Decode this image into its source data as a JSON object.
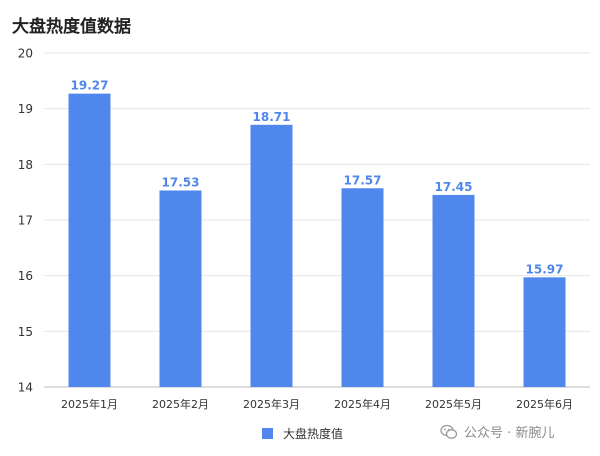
{
  "title": "大盘热度值数据",
  "watermark": "公众号 · 新腕儿",
  "chart_data": {
    "type": "bar",
    "title": "大盘热度值数据",
    "categories": [
      "2025年1月",
      "2025年2月",
      "2025年3月",
      "2025年4月",
      "2025年5月",
      "2025年6月"
    ],
    "series": [
      {
        "name": "大盘热度值",
        "values": [
          19.27,
          17.53,
          18.71,
          17.57,
          17.45,
          15.97
        ]
      }
    ],
    "ylim": [
      14,
      20
    ],
    "yticks": [
      14,
      15,
      16,
      17,
      18,
      19,
      20
    ],
    "grid": true,
    "legend": "bottom",
    "colors": {
      "bar": "#5087EC",
      "label": "#5087EC",
      "grid": "#e6e6e6"
    }
  }
}
